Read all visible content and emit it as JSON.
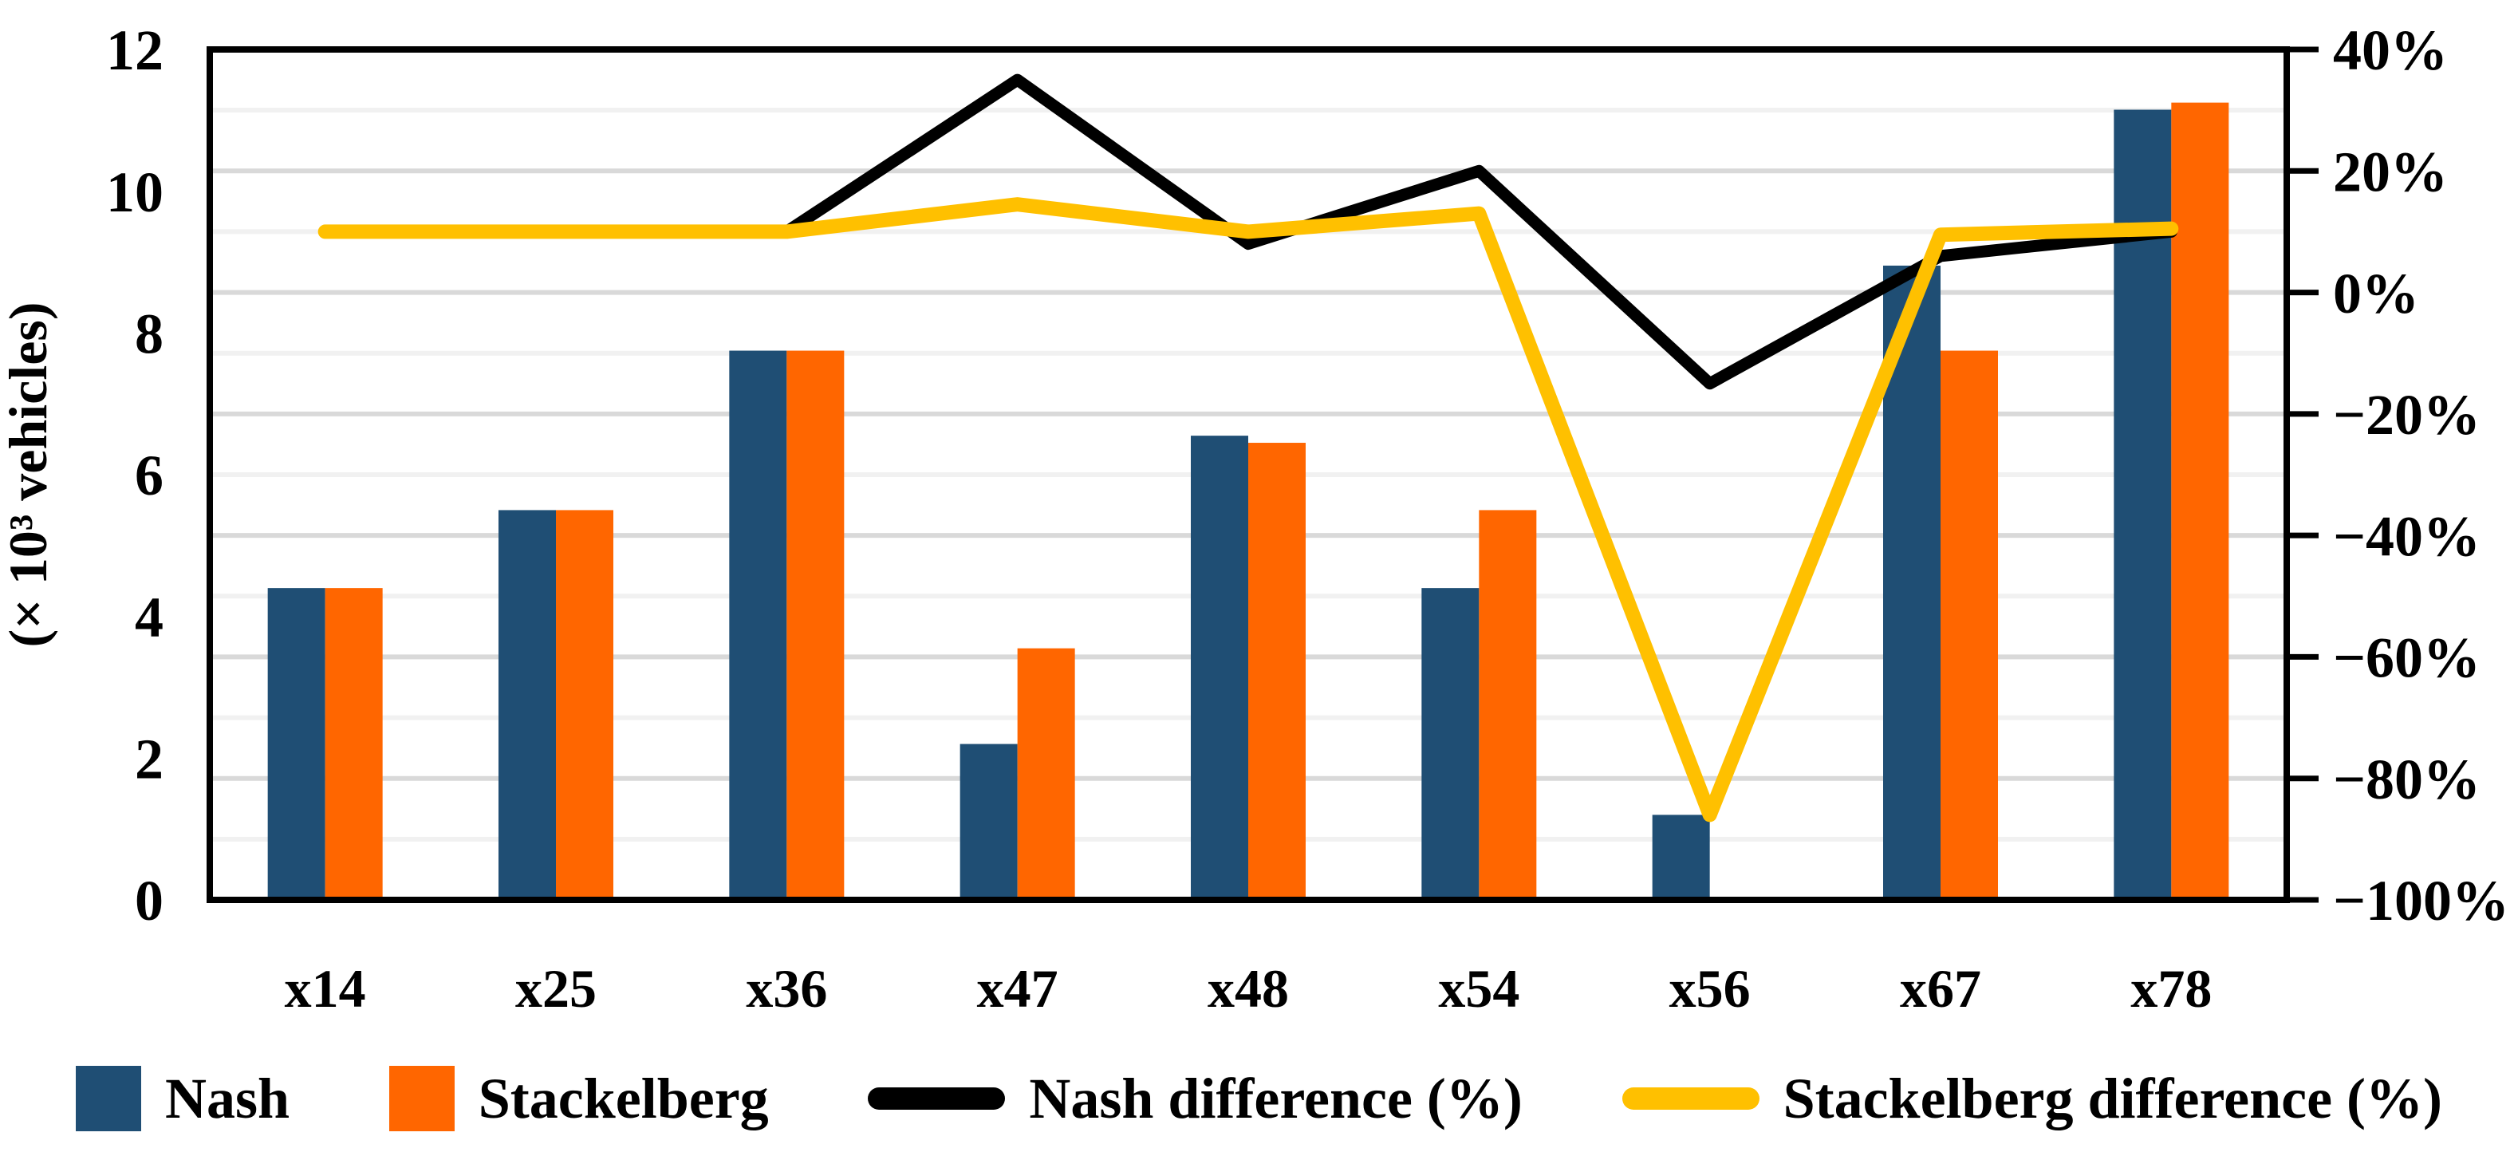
{
  "chart_data": {
    "type": "bar+line-dual-axis",
    "categories": [
      "x14",
      "x25",
      "x36",
      "x47",
      "x48",
      "x54",
      "x56",
      "x67",
      "x78"
    ],
    "series": [
      {
        "name": "Nash",
        "type": "bar",
        "axis": "left",
        "color": "#1F4E74",
        "values": [
          4.4,
          5.5,
          7.75,
          2.2,
          6.55,
          4.4,
          1.2,
          8.95,
          11.15
        ]
      },
      {
        "name": "Stackelberg",
        "type": "bar",
        "axis": "left",
        "color": "#FF6600",
        "values": [
          4.4,
          5.5,
          7.75,
          3.55,
          6.45,
          5.5,
          0,
          7.75,
          11.25
        ]
      },
      {
        "name": "Nash difference (%)",
        "type": "line",
        "axis": "right",
        "color": "#000000",
        "values": [
          10,
          10,
          10,
          35,
          8,
          20,
          -15,
          6,
          10
        ]
      },
      {
        "name": "Stackelberg difference (%)",
        "type": "line",
        "axis": "right",
        "color": "#FFC000",
        "values": [
          10,
          10,
          10,
          14.5,
          10,
          13,
          -86,
          9.5,
          10.5
        ]
      }
    ],
    "left_axis": {
      "title": "(× 10³ vehicles)",
      "min": 0,
      "max": 12,
      "tick_step": 2,
      "tick_labels": [
        "0",
        "2",
        "4",
        "6",
        "8",
        "10",
        "12"
      ]
    },
    "right_axis": {
      "min": -100,
      "max": 40,
      "tick_step": 20,
      "tick_labels": [
        "−100%",
        "−80%",
        "−60%",
        "−40%",
        "−20%",
        "0%",
        "20%",
        "40%"
      ]
    },
    "grid": {
      "minor_step_pct": 10,
      "minor_color": "#F1F1F1",
      "major_color": "#D9D9D9"
    },
    "legend_position": "bottom",
    "title": "",
    "xlabel": ""
  },
  "colors": {
    "nash_bar": "#1F4E74",
    "stackelberg_bar": "#FF6600",
    "nash_line": "#000000",
    "stackelberg_line": "#FFC000",
    "axis_border": "#000000"
  }
}
